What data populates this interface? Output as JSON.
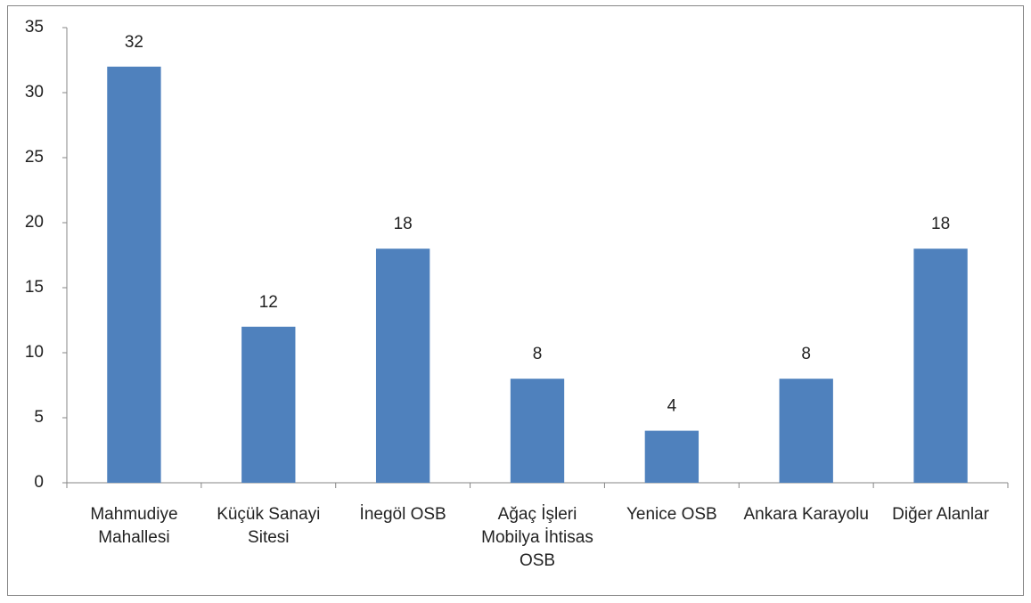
{
  "chart_data": {
    "type": "bar",
    "categories": [
      "Mahmudiye Mahallesi",
      "Küçük Sanayi Sitesi",
      "İnegöl OSB",
      "Ağaç İşleri Mobilya İhtisas OSB",
      "Yenice OSB",
      "Ankara Karayolu",
      "Diğer Alanlar"
    ],
    "values": [
      32,
      12,
      18,
      8,
      4,
      8,
      18
    ],
    "color": "#4f81bd",
    "ylim": [
      0,
      35
    ],
    "yticks": [
      0,
      5,
      10,
      15,
      20,
      25,
      30,
      35
    ],
    "grid": false
  }
}
